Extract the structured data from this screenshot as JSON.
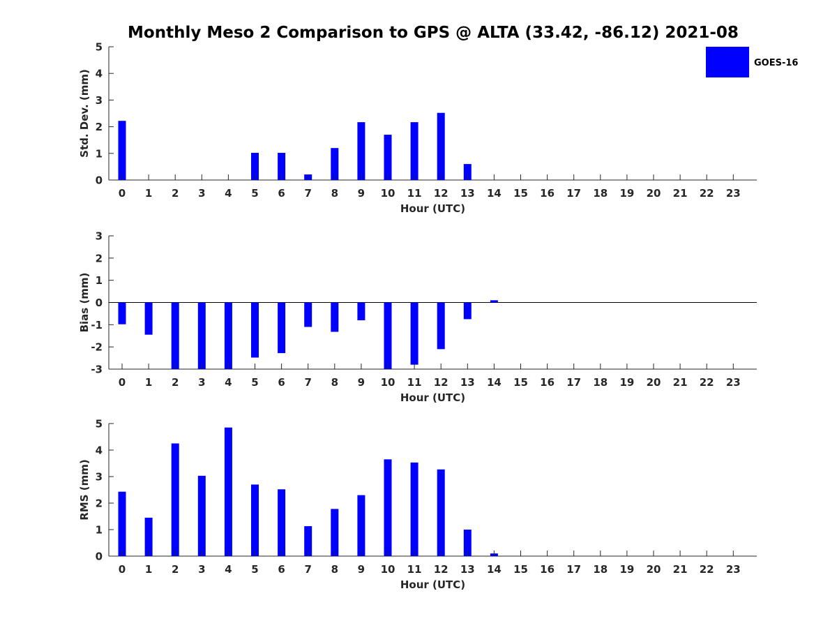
{
  "figure": {
    "title": "Monthly Meso 2 Comparison to GPS @ ALTA (33.42, -86.12) 2021-08",
    "legend": [
      {
        "label": "GOES-16",
        "color": "#0000ff"
      }
    ]
  },
  "chart_data": [
    {
      "type": "bar",
      "xlabel": "Hour (UTC)",
      "ylabel": "Std. Dev. (mm)",
      "ylim": [
        0,
        5
      ],
      "yticks": [
        0,
        1,
        2,
        3,
        4,
        5
      ],
      "categories": [
        "0",
        "1",
        "2",
        "3",
        "4",
        "5",
        "6",
        "7",
        "8",
        "9",
        "10",
        "11",
        "12",
        "13",
        "14",
        "15",
        "16",
        "17",
        "18",
        "19",
        "20",
        "21",
        "22",
        "23"
      ],
      "series": [
        {
          "name": "GOES-16",
          "color": "#0000ff",
          "values": [
            2.22,
            0,
            0,
            0,
            0,
            1.02,
            1.02,
            0.21,
            1.2,
            2.17,
            1.7,
            2.17,
            2.52,
            0.6,
            0,
            0,
            0,
            0,
            0,
            0,
            0,
            0,
            0,
            0
          ]
        }
      ],
      "legend": "top-right"
    },
    {
      "type": "bar",
      "xlabel": "Hour (UTC)",
      "ylabel": "Bias (mm)",
      "ylim": [
        -3,
        3
      ],
      "yticks": [
        -3,
        -2,
        -1,
        0,
        1,
        2,
        3
      ],
      "categories": [
        "0",
        "1",
        "2",
        "3",
        "4",
        "5",
        "6",
        "7",
        "8",
        "9",
        "10",
        "11",
        "12",
        "13",
        "14",
        "15",
        "16",
        "17",
        "18",
        "19",
        "20",
        "21",
        "22",
        "23"
      ],
      "series": [
        {
          "name": "GOES-16",
          "color": "#0000ff",
          "values": [
            -0.98,
            -1.45,
            -3.0,
            -3.0,
            -3.0,
            -2.48,
            -2.28,
            -1.1,
            -1.32,
            -0.8,
            -3.0,
            -2.8,
            -2.1,
            -0.75,
            0.1,
            0,
            0,
            0,
            0,
            0,
            0,
            0,
            0,
            0
          ]
        }
      ],
      "zero_line": true
    },
    {
      "type": "bar",
      "xlabel": "Hour (UTC)",
      "ylabel": "RMS (mm)",
      "ylim": [
        0,
        5
      ],
      "yticks": [
        0,
        1,
        2,
        3,
        4,
        5
      ],
      "categories": [
        "0",
        "1",
        "2",
        "3",
        "4",
        "5",
        "6",
        "7",
        "8",
        "9",
        "10",
        "11",
        "12",
        "13",
        "14",
        "15",
        "16",
        "17",
        "18",
        "19",
        "20",
        "21",
        "22",
        "23"
      ],
      "series": [
        {
          "name": "GOES-16",
          "color": "#0000ff",
          "values": [
            2.43,
            1.45,
            4.25,
            3.03,
            4.85,
            2.7,
            2.52,
            1.13,
            1.78,
            2.3,
            3.65,
            3.53,
            3.27,
            1.0,
            0.1,
            0,
            0,
            0,
            0,
            0,
            0,
            0,
            0,
            0
          ]
        }
      ]
    }
  ]
}
